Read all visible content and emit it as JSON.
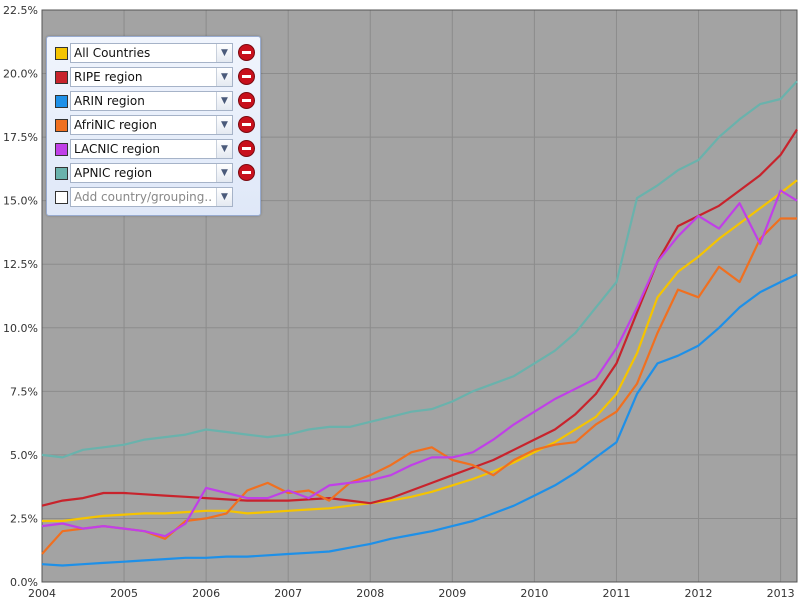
{
  "chart_data": {
    "type": "line",
    "title": "",
    "xlabel": "",
    "ylabel": "",
    "x_tick_labels": [
      "2004",
      "2005",
      "2006",
      "2007",
      "2008",
      "2009",
      "2010",
      "2011",
      "2012",
      "2013"
    ],
    "y_tick_labels": [
      "0.0%",
      "2.5%",
      "5.0%",
      "7.5%",
      "10.0%",
      "12.5%",
      "15.0%",
      "17.5%",
      "20.0%",
      "22.5%"
    ],
    "xlim": [
      2004.0,
      2013.2
    ],
    "ylim": [
      0,
      22.5
    ],
    "grid": true,
    "legend_placement": "top-left",
    "x": [
      2004.0,
      2004.25,
      2004.5,
      2004.75,
      2005.0,
      2005.25,
      2005.5,
      2005.75,
      2006.0,
      2006.25,
      2006.5,
      2006.75,
      2007.0,
      2007.25,
      2007.5,
      2007.75,
      2008.0,
      2008.25,
      2008.5,
      2008.75,
      2009.0,
      2009.25,
      2009.5,
      2009.75,
      2010.0,
      2010.25,
      2010.5,
      2010.75,
      2011.0,
      2011.25,
      2011.5,
      2011.75,
      2012.0,
      2012.25,
      2012.5,
      2012.75,
      2013.0,
      2013.2
    ],
    "series": [
      {
        "name": "All Countries",
        "color": "#f5c400",
        "values": [
          2.4,
          2.4,
          2.5,
          2.6,
          2.65,
          2.7,
          2.7,
          2.75,
          2.8,
          2.8,
          2.7,
          2.75,
          2.8,
          2.85,
          2.9,
          3.0,
          3.1,
          3.2,
          3.35,
          3.55,
          3.8,
          4.05,
          4.35,
          4.7,
          5.1,
          5.5,
          6.0,
          6.5,
          7.4,
          9.0,
          11.2,
          12.2,
          12.8,
          13.5,
          14.1,
          14.7,
          15.3,
          15.8
        ]
      },
      {
        "name": "RIPE region",
        "color": "#c8232c",
        "values": [
          3.0,
          3.2,
          3.3,
          3.5,
          3.5,
          3.45,
          3.4,
          3.35,
          3.3,
          3.25,
          3.2,
          3.2,
          3.2,
          3.25,
          3.3,
          3.2,
          3.1,
          3.3,
          3.6,
          3.9,
          4.2,
          4.5,
          4.8,
          5.2,
          5.6,
          6.0,
          6.6,
          7.4,
          8.6,
          10.6,
          12.6,
          14.0,
          14.4,
          14.8,
          15.4,
          16.0,
          16.8,
          17.8
        ]
      },
      {
        "name": "ARIN region",
        "color": "#1e90e8",
        "values": [
          0.7,
          0.65,
          0.7,
          0.75,
          0.8,
          0.85,
          0.9,
          0.95,
          0.95,
          1.0,
          1.0,
          1.05,
          1.1,
          1.15,
          1.2,
          1.35,
          1.5,
          1.7,
          1.85,
          2.0,
          2.2,
          2.4,
          2.7,
          3.0,
          3.4,
          3.8,
          4.3,
          4.9,
          5.5,
          7.4,
          8.6,
          8.9,
          9.3,
          10.0,
          10.8,
          11.4,
          11.8,
          12.1
        ]
      },
      {
        "name": "AfriNIC region",
        "color": "#f07020",
        "values": [
          1.1,
          2.0,
          2.1,
          2.2,
          2.1,
          2.0,
          1.7,
          2.4,
          2.5,
          2.7,
          3.6,
          3.9,
          3.5,
          3.6,
          3.2,
          3.9,
          4.2,
          4.6,
          5.1,
          5.3,
          4.8,
          4.6,
          4.2,
          4.8,
          5.2,
          5.4,
          5.5,
          6.2,
          6.7,
          7.8,
          9.8,
          11.5,
          11.2,
          12.4,
          11.8,
          13.5,
          14.3,
          14.3
        ]
      },
      {
        "name": "LACNIC region",
        "color": "#c040e8",
        "values": [
          2.2,
          2.3,
          2.1,
          2.2,
          2.1,
          2.0,
          1.8,
          2.3,
          3.7,
          3.5,
          3.3,
          3.3,
          3.6,
          3.3,
          3.8,
          3.9,
          4.0,
          4.2,
          4.6,
          4.9,
          4.9,
          5.1,
          5.6,
          6.2,
          6.7,
          7.2,
          7.6,
          8.0,
          9.2,
          10.8,
          12.6,
          13.6,
          14.4,
          13.9,
          14.9,
          13.3,
          15.4,
          15.0
        ]
      },
      {
        "name": "APNIC region",
        "color": "#6ab2ac",
        "values": [
          5.0,
          4.9,
          5.2,
          5.3,
          5.4,
          5.6,
          5.7,
          5.8,
          6.0,
          5.9,
          5.8,
          5.7,
          5.8,
          6.0,
          6.1,
          6.1,
          6.3,
          6.5,
          6.7,
          6.8,
          7.1,
          7.5,
          7.8,
          8.1,
          8.6,
          9.1,
          9.8,
          10.8,
          11.8,
          15.1,
          15.6,
          16.2,
          16.6,
          17.5,
          18.2,
          18.8,
          19.0,
          19.7
        ]
      }
    ]
  },
  "legend": {
    "rows": [
      {
        "label": "All Countries",
        "color": "#f5c400"
      },
      {
        "label": "RIPE region",
        "color": "#c8232c"
      },
      {
        "label": "ARIN region",
        "color": "#1e90e8"
      },
      {
        "label": "AfriNIC region",
        "color": "#f07020"
      },
      {
        "label": "LACNIC region",
        "color": "#c040e8"
      },
      {
        "label": "APNIC region",
        "color": "#6ab2ac"
      }
    ],
    "add_placeholder": "Add country/grouping..",
    "add_swatch_color": "#ffffff",
    "dropdown_icon": "chevron-down-icon",
    "remove_icon": "remove-icon"
  }
}
